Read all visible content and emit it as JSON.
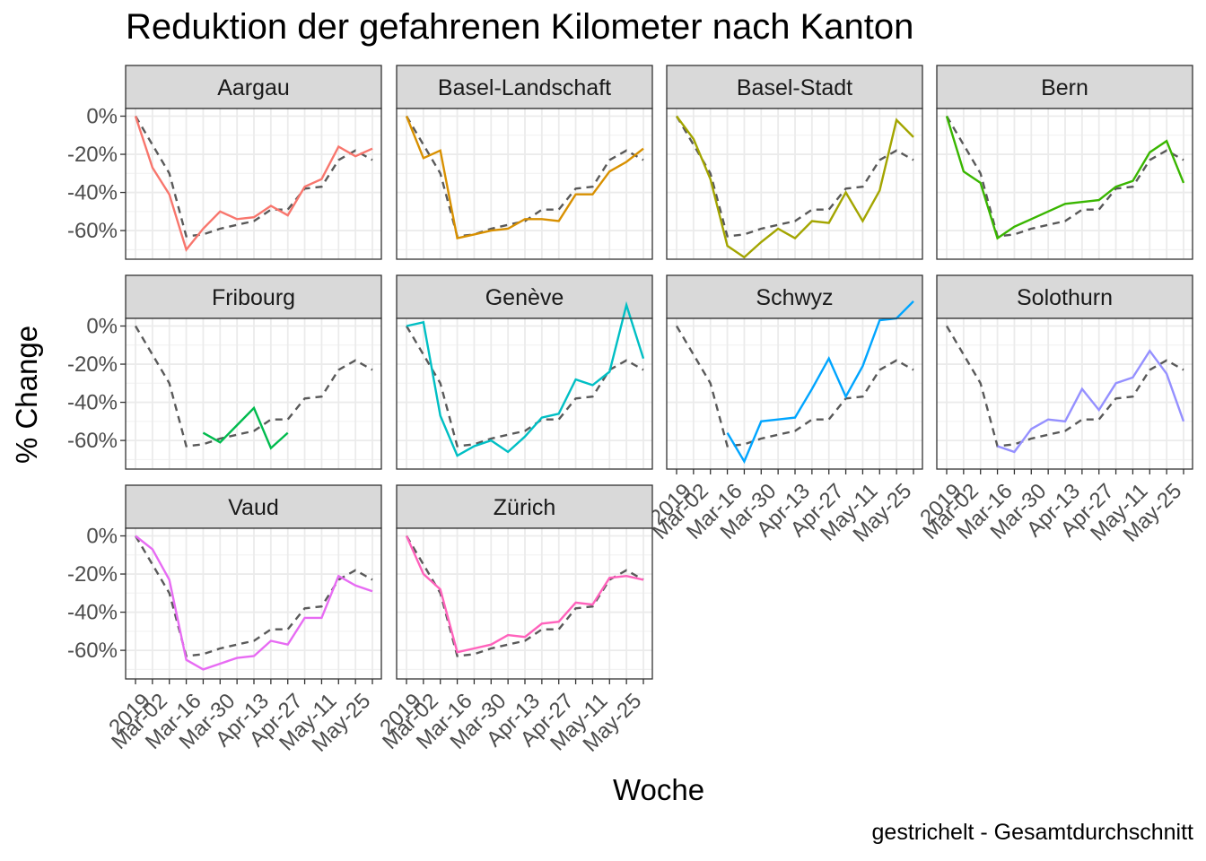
{
  "chart_data": {
    "type": "line",
    "title": "Reduktion der gefahrenen Kilometer nach Kanton",
    "xlabel": "Woche",
    "ylabel": "% Change",
    "caption": "gestrichelt - Gesamtdurchschnitt",
    "x_tick_labels": [
      "2019",
      "Mar-02",
      "Mar-16",
      "Mar-30",
      "Apr-13",
      "Apr-27",
      "May-11",
      "May-25"
    ],
    "x_index_range": [
      0,
      14
    ],
    "y_tick_labels": [
      "0%",
      "-20%",
      "-40%",
      "-60%"
    ],
    "y_ticks": [
      0,
      -20,
      -40,
      -60
    ],
    "ylim": [
      -75,
      4
    ],
    "grid": true,
    "average_series": {
      "name": "Gesamtdurchschnitt",
      "line_style": "dashed",
      "color": "#595959",
      "x": [
        0,
        1,
        2,
        3,
        4,
        5,
        6,
        7,
        8,
        9,
        10,
        11,
        12,
        13,
        14
      ],
      "values": [
        0,
        -15,
        -30,
        -63,
        -62,
        -59,
        -57,
        -55,
        -49,
        -49,
        -38,
        -37,
        -23,
        -18,
        -23
      ]
    },
    "panels": [
      {
        "name": "Aargau",
        "color": "#F8766D",
        "x": [
          0,
          1,
          2,
          3,
          4,
          5,
          6,
          7,
          8,
          9,
          10,
          11,
          12,
          13,
          14
        ],
        "values": [
          0,
          -27,
          -41,
          -70,
          -59,
          -50,
          -54,
          -53,
          -47,
          -52,
          -37,
          -33,
          -16,
          -21,
          -17
        ]
      },
      {
        "name": "Basel-Landschaft",
        "color": "#D89000",
        "x": [
          0,
          1,
          2,
          3,
          4,
          5,
          6,
          7,
          8,
          9,
          10,
          11,
          12,
          13,
          14
        ],
        "values": [
          0,
          -22,
          -18,
          -64,
          -62,
          -60,
          -59,
          -54,
          -54,
          -55,
          -41,
          -41,
          -29,
          -24,
          -17
        ]
      },
      {
        "name": "Basel-Stadt",
        "color": "#A3A500",
        "x": [
          0,
          1,
          2,
          3,
          4,
          5,
          6,
          7,
          8,
          9,
          10,
          11,
          12,
          13,
          14
        ],
        "values": [
          0,
          -12,
          -33,
          -68,
          -74,
          -66,
          -59,
          -64,
          -55,
          -56,
          -40,
          -55,
          -39,
          -2,
          -11
        ]
      },
      {
        "name": "Bern",
        "color": "#39B600",
        "x": [
          0,
          1,
          2,
          3,
          4,
          5,
          6,
          7,
          8,
          9,
          10,
          11,
          12,
          13,
          14
        ],
        "values": [
          0,
          -29,
          -35,
          -64,
          -58,
          -54,
          -50,
          -46,
          -45,
          -44,
          -37,
          -34,
          -19,
          -13,
          -35
        ]
      },
      {
        "name": "Fribourg",
        "color": "#00BB4E",
        "x": [
          4,
          5,
          6,
          7,
          8,
          9
        ],
        "values": [
          -56,
          -61,
          -52,
          -43,
          -64,
          -56
        ]
      },
      {
        "name": "Genève",
        "color": "#00BFC4",
        "x": [
          0,
          1,
          2,
          3,
          4,
          5,
          6,
          7,
          8,
          9,
          10,
          11,
          12,
          13,
          14
        ],
        "values": [
          0,
          2,
          -47,
          -68,
          -63,
          -60,
          -66,
          -58,
          -48,
          -46,
          -28,
          -31,
          -24,
          11,
          -17
        ]
      },
      {
        "name": "Schwyz",
        "color": "#00A5FF",
        "x": [
          3,
          4,
          5,
          6,
          7,
          8,
          9,
          10,
          11,
          12,
          13,
          14
        ],
        "values": [
          -56,
          -71,
          -50,
          -49,
          -48,
          -33,
          -17,
          -37,
          -21,
          3,
          4,
          13
        ]
      },
      {
        "name": "Solothurn",
        "color": "#9590FF",
        "x": [
          3,
          4,
          5,
          6,
          7,
          8,
          9,
          10,
          11,
          12,
          13,
          14
        ],
        "values": [
          -63,
          -66,
          -54,
          -49,
          -50,
          -33,
          -44,
          -30,
          -27,
          -13,
          -25,
          -50
        ]
      },
      {
        "name": "Vaud",
        "color": "#E76BF3",
        "x": [
          0,
          1,
          2,
          3,
          4,
          5,
          6,
          7,
          8,
          9,
          10,
          11,
          12,
          13,
          14
        ],
        "values": [
          0,
          -7,
          -23,
          -65,
          -70,
          -67,
          -64,
          -63,
          -55,
          -57,
          -43,
          -43,
          -21,
          -26,
          -29
        ]
      },
      {
        "name": "Zürich",
        "color": "#FF62BC",
        "x": [
          0,
          1,
          2,
          3,
          4,
          5,
          6,
          7,
          8,
          9,
          10,
          11,
          12,
          13,
          14
        ],
        "values": [
          0,
          -20,
          -28,
          -61,
          -59,
          -57,
          -52,
          -53,
          -46,
          -45,
          -35,
          -36,
          -22,
          -21,
          -23
        ]
      }
    ]
  }
}
